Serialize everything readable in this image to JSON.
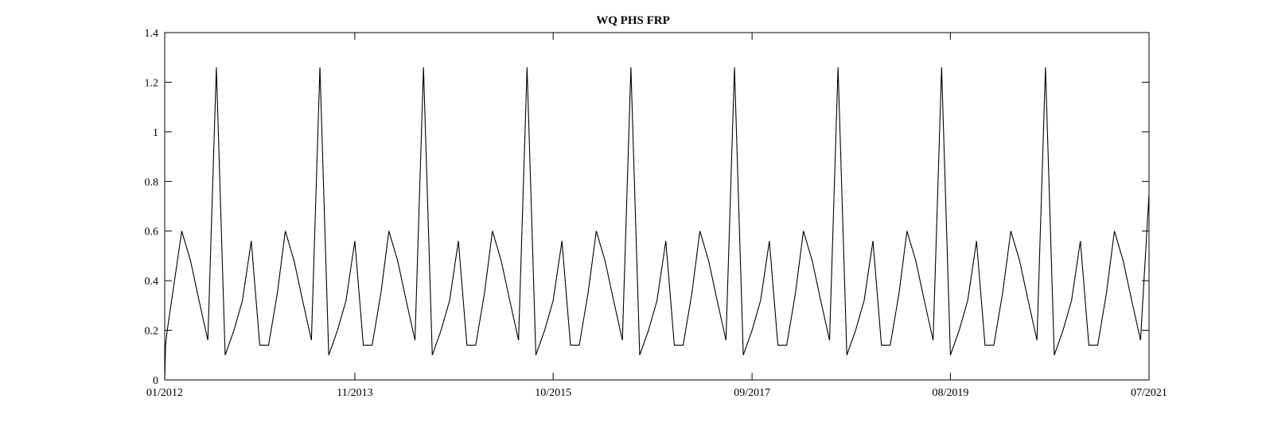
{
  "chart_data": {
    "type": "line",
    "title": "WQ PHS FRP",
    "xlabel": "",
    "ylabel": "",
    "xlim": [
      "2012-01",
      "2021-07"
    ],
    "ylim": [
      0,
      1.4
    ],
    "x_ticks": [
      "01/2012",
      "11/2013",
      "10/2015",
      "09/2017",
      "08/2019",
      "07/2021"
    ],
    "y_ticks": [
      "0",
      "0.2",
      "0.4",
      "0.6",
      "0.8",
      "1",
      "1.2",
      "1.4"
    ],
    "grid": false,
    "legend": "none",
    "line_color": "#000000",
    "series": [
      {
        "x": [
          "2012-01-01",
          "2012-01-04",
          "2012-01-10",
          "2012-03-01",
          "2012-04-01",
          "2012-05-01",
          "2012-06-01",
          "2012-07-01",
          "2012-08-01",
          "2012-09-01",
          "2012-10-01",
          "2012-11-01",
          "2012-12-01",
          "2013-01-01",
          "2013-02-01",
          "2013-03-01",
          "2013-04-01",
          "2013-05-01",
          "2013-06-01",
          "2013-07-01",
          "2013-08-01",
          "2013-09-01",
          "2013-10-01",
          "2013-11-01",
          "2013-12-01",
          "2014-01-01",
          "2014-02-01",
          "2014-03-01",
          "2014-04-01",
          "2014-05-01",
          "2014-06-01",
          "2014-07-01",
          "2014-08-01",
          "2014-09-01",
          "2014-10-01",
          "2014-11-01",
          "2014-12-01",
          "2015-01-01",
          "2015-02-01",
          "2015-03-01",
          "2015-04-01",
          "2015-05-01",
          "2015-06-01",
          "2015-07-01",
          "2015-08-01",
          "2015-09-01",
          "2015-10-01",
          "2015-11-01",
          "2015-12-01",
          "2016-01-01",
          "2016-02-01",
          "2016-03-01",
          "2016-04-01",
          "2016-05-01",
          "2016-06-01",
          "2016-07-01",
          "2016-08-01",
          "2016-09-01",
          "2016-10-01",
          "2016-11-01",
          "2016-12-01",
          "2017-01-01",
          "2017-02-01",
          "2017-03-01",
          "2017-04-01",
          "2017-05-01",
          "2017-06-01",
          "2017-07-01",
          "2017-08-01",
          "2017-09-01",
          "2017-10-01",
          "2017-11-01",
          "2017-12-01",
          "2018-01-01",
          "2018-02-01",
          "2018-03-01",
          "2018-04-01",
          "2018-05-01",
          "2018-06-01",
          "2018-07-01",
          "2018-08-01",
          "2018-09-01",
          "2018-10-01",
          "2018-11-01",
          "2018-12-01",
          "2019-01-01",
          "2019-02-01",
          "2019-03-01",
          "2019-04-01",
          "2019-05-01",
          "2019-06-01",
          "2019-07-01",
          "2019-08-01",
          "2019-09-01",
          "2019-10-01",
          "2019-11-01",
          "2019-12-01",
          "2020-01-01",
          "2020-02-01",
          "2020-03-01",
          "2020-04-01",
          "2020-05-01",
          "2020-06-01",
          "2020-07-01",
          "2020-08-01",
          "2020-09-01",
          "2020-10-01",
          "2020-11-01",
          "2020-12-01",
          "2021-01-01",
          "2021-02-01",
          "2021-03-01",
          "2021-04-01",
          "2021-05-01",
          "2021-06-01",
          "2021-07-01"
        ],
        "y": [
          0.0,
          0.14,
          0.2,
          0.6,
          0.48,
          0.32,
          0.16,
          1.26,
          0.1,
          0.2,
          0.32,
          0.56,
          0.14,
          0.14,
          0.35,
          0.6,
          0.48,
          0.32,
          0.16,
          1.26,
          0.1,
          0.2,
          0.32,
          0.56,
          0.14,
          0.14,
          0.35,
          0.6,
          0.48,
          0.32,
          0.16,
          1.26,
          0.1,
          0.2,
          0.32,
          0.56,
          0.14,
          0.14,
          0.35,
          0.6,
          0.48,
          0.32,
          0.16,
          1.26,
          0.1,
          0.2,
          0.32,
          0.56,
          0.14,
          0.14,
          0.35,
          0.6,
          0.48,
          0.32,
          0.16,
          1.26,
          0.1,
          0.2,
          0.32,
          0.56,
          0.14,
          0.14,
          0.35,
          0.6,
          0.48,
          0.32,
          0.16,
          1.26,
          0.1,
          0.2,
          0.32,
          0.56,
          0.14,
          0.14,
          0.35,
          0.6,
          0.48,
          0.32,
          0.16,
          1.26,
          0.1,
          0.2,
          0.32,
          0.56,
          0.14,
          0.14,
          0.35,
          0.6,
          0.48,
          0.32,
          0.16,
          1.26,
          0.1,
          0.2,
          0.32,
          0.56,
          0.14,
          0.14,
          0.35,
          0.6,
          0.48,
          0.32,
          0.16,
          1.26,
          0.1,
          0.2,
          0.32,
          0.56,
          0.14,
          0.14,
          0.35,
          0.6,
          0.48,
          0.32,
          0.16,
          0.75
        ]
      }
    ]
  }
}
